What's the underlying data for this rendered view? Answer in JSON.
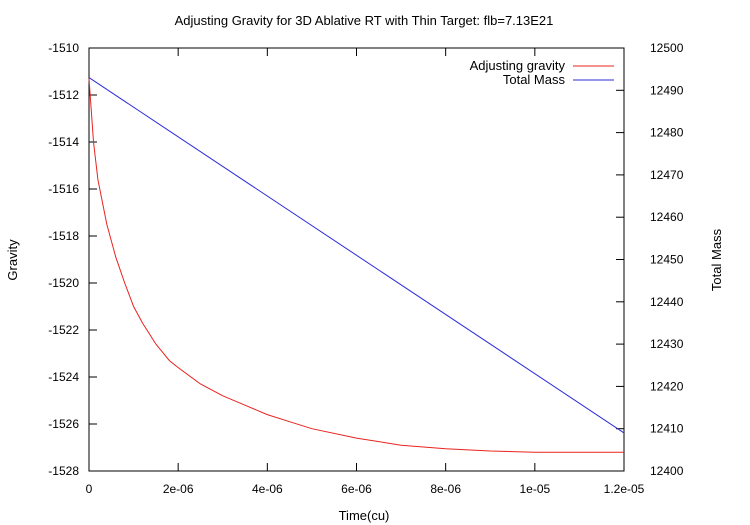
{
  "chart_data": {
    "type": "line",
    "title": "Adjusting Gravity for 3D Ablative RT with Thin Target: flb=7.13E21",
    "xlabel": "Time(cu)",
    "ylabel": "Gravity",
    "y2label": "Total Mass",
    "xlim": [
      0,
      1.2e-05
    ],
    "ylim": [
      -1528,
      -1510
    ],
    "y2lim": [
      12400,
      12500
    ],
    "x_ticks": [
      0,
      2e-06,
      4e-06,
      6e-06,
      8e-06,
      1e-05,
      1.2e-05
    ],
    "x_tick_labels": [
      "0",
      "2e-06",
      "4e-06",
      "6e-06",
      "8e-06",
      "1e-05",
      "1.2e-05"
    ],
    "y_ticks": [
      -1528,
      -1526,
      -1524,
      -1522,
      -1520,
      -1518,
      -1516,
      -1514,
      -1512,
      -1510
    ],
    "y_tick_labels": [
      "-1528",
      "-1526",
      "-1524",
      "-1522",
      "-1520",
      "-1518",
      "-1516",
      "-1514",
      "-1512",
      "-1510"
    ],
    "y2_ticks": [
      12400,
      12410,
      12420,
      12430,
      12440,
      12450,
      12460,
      12470,
      12480,
      12490,
      12500
    ],
    "y2_tick_labels": [
      "12400",
      "12410",
      "12420",
      "12430",
      "12440",
      "12450",
      "12460",
      "12470",
      "12480",
      "12490",
      "12500"
    ],
    "grid": false,
    "legend_position": "top-right",
    "series": [
      {
        "name": "Adjusting gravity",
        "axis": "left",
        "color": "#e8231e",
        "x": [
          0,
          1e-07,
          2e-07,
          4e-07,
          6e-07,
          8e-07,
          1e-06,
          1.2e-06,
          1.5e-06,
          1.8e-06,
          2e-06,
          2.5e-06,
          3e-06,
          3.5e-06,
          4e-06,
          4.5e-06,
          5e-06,
          6e-06,
          7e-06,
          8e-06,
          9e-06,
          1e-05,
          1.1e-05,
          1.2e-05
        ],
        "y": [
          -1511.3,
          -1514.0,
          -1515.6,
          -1517.5,
          -1518.9,
          -1520.0,
          -1521.0,
          -1521.7,
          -1522.6,
          -1523.3,
          -1523.6,
          -1524.3,
          -1524.8,
          -1525.2,
          -1525.6,
          -1525.9,
          -1526.2,
          -1526.6,
          -1526.9,
          -1527.05,
          -1527.15,
          -1527.2,
          -1527.2,
          -1527.2
        ]
      },
      {
        "name": "Total Mass",
        "axis": "right",
        "color": "#2b2bd9",
        "x": [
          0,
          1.2e-05
        ],
        "y": [
          12493,
          12409
        ]
      }
    ]
  }
}
